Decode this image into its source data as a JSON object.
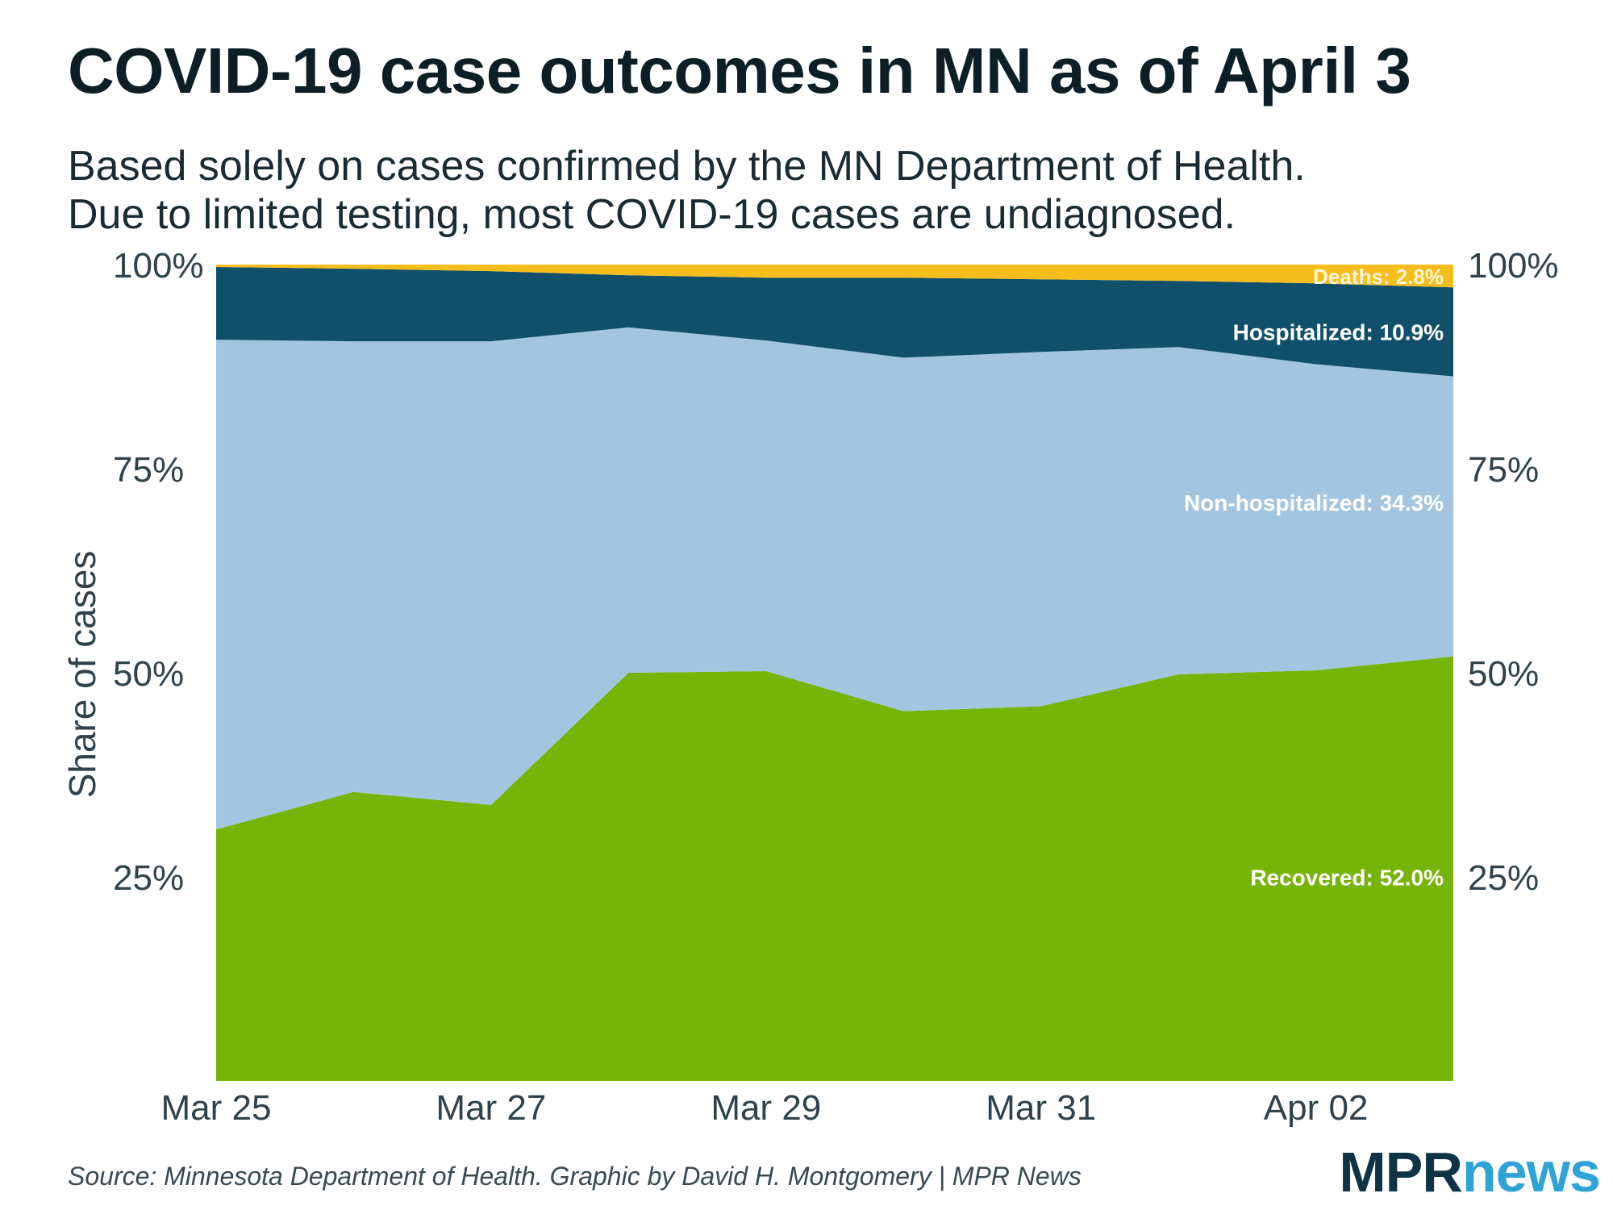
{
  "title": "COVID-19 case outcomes in MN as of April 3",
  "subtitle": [
    "Based solely on cases confirmed by the MN Department of Health.",
    "Due to limited testing, most COVID-19 cases are undiagnosed."
  ],
  "source": "Source: Minnesota Department of Health. Graphic by David H. Montgomery | MPR News",
  "logo": {
    "part1": "MPR",
    "part2": "news"
  },
  "chart_data": {
    "type": "area",
    "stacked": true,
    "ylabel": "Share of cases",
    "ylim": [
      0,
      100
    ],
    "yticks": [
      25,
      50,
      75,
      100
    ],
    "ytick_labels": [
      "25%",
      "50%",
      "75%",
      "100%"
    ],
    "y_axis_both_sides": true,
    "x": [
      "Mar 25",
      "Mar 26",
      "Mar 27",
      "Mar 28",
      "Mar 29",
      "Mar 30",
      "Mar 31",
      "Apr 01",
      "Apr 02",
      "Apr 03"
    ],
    "xtick_labels": [
      {
        "index": 0,
        "label": "Mar 25"
      },
      {
        "index": 2,
        "label": "Mar 27"
      },
      {
        "index": 4,
        "label": "Mar 29"
      },
      {
        "index": 6,
        "label": "Mar 31"
      },
      {
        "index": 8,
        "label": "Apr 02"
      }
    ],
    "series": [
      {
        "name": "Recovered",
        "label": "Recovered: 52.0%",
        "color": "#76b407",
        "values": [
          30.8,
          35.4,
          33.8,
          50.0,
          50.2,
          45.3,
          45.9,
          49.8,
          50.3,
          52.0
        ]
      },
      {
        "name": "Non-hospitalized",
        "label": "Non-hospitalized: 34.3%",
        "color": "#a3c5df",
        "values": [
          60.0,
          55.2,
          56.8,
          42.3,
          40.5,
          43.3,
          43.4,
          40.1,
          37.5,
          34.3
        ]
      },
      {
        "name": "Hospitalized",
        "label": "Hospitalized: 10.9%",
        "color": "#11506a",
        "values": [
          8.9,
          8.9,
          8.6,
          6.4,
          7.7,
          9.8,
          8.9,
          8.1,
          9.9,
          10.9
        ]
      },
      {
        "name": "Deaths",
        "label": "Deaths: 2.8%",
        "color": "#f6be1d",
        "values": [
          0.3,
          0.5,
          0.8,
          1.3,
          1.6,
          1.6,
          1.8,
          2.0,
          2.3,
          2.8
        ]
      }
    ],
    "grid": false,
    "legend": "direct labels at right end"
  }
}
